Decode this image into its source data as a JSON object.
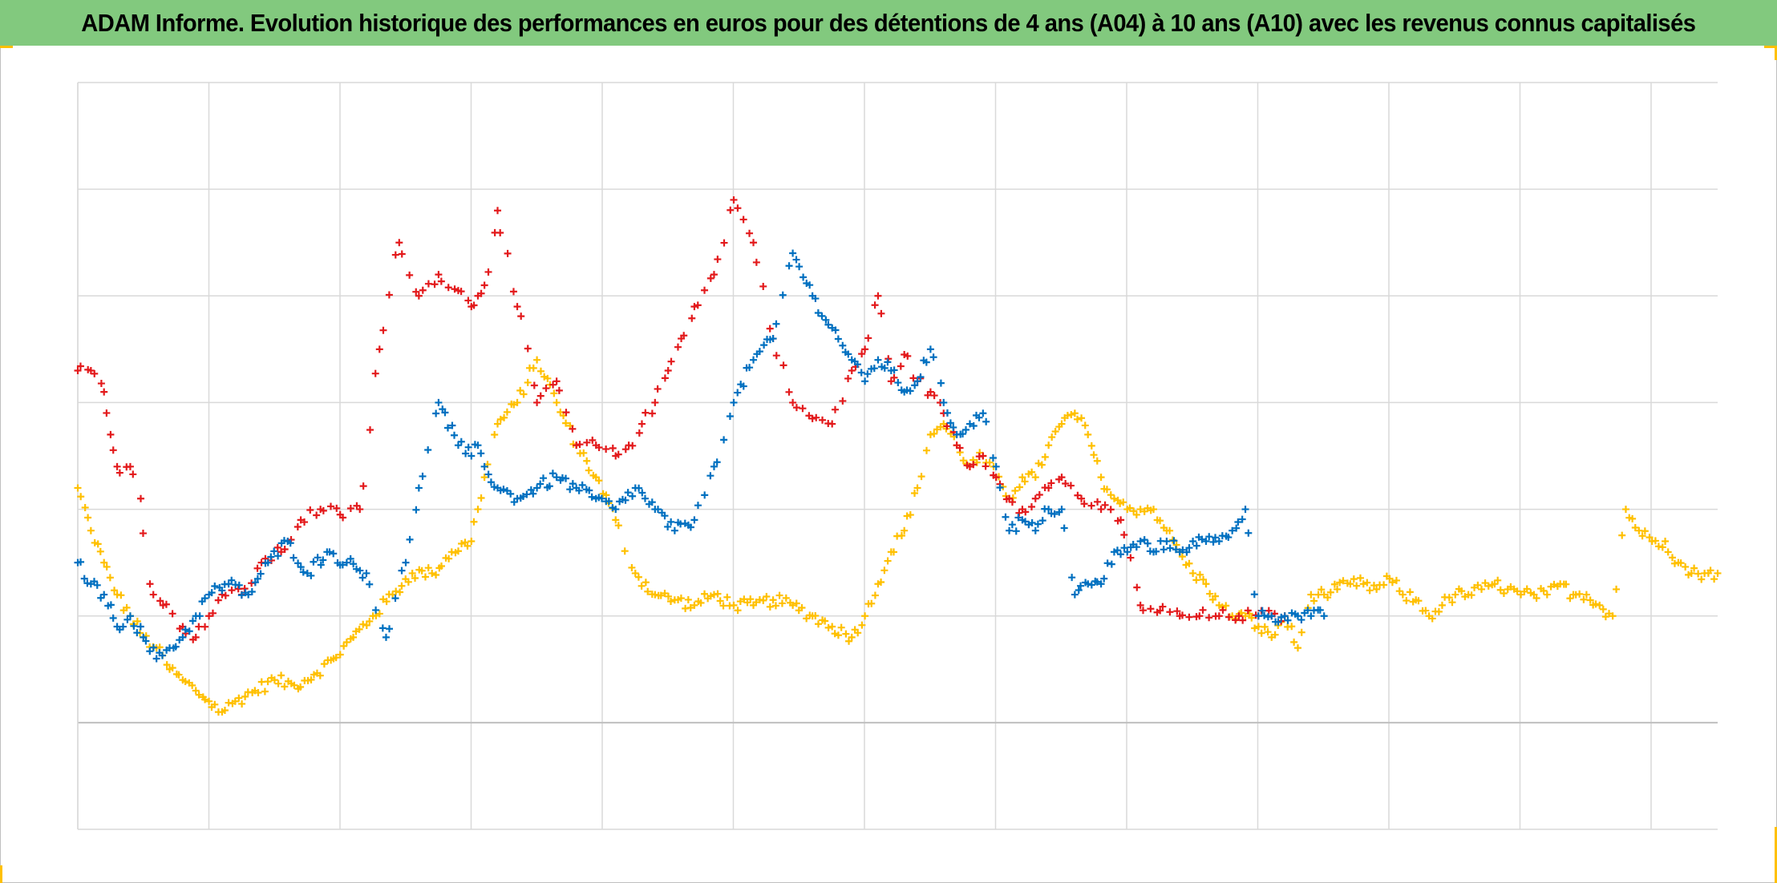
{
  "title": "ADAM Informe. Evolution historique des performances en euros pour des détentions de 4 ans (A04) à 10 ans (A10) avec les revenus connus capitalisés",
  "colors": {
    "title_background": "#82c97e",
    "gridline": "#d9d9d9",
    "zero_line": "#bfbfbf",
    "corner_marks": "#ffc000"
  },
  "chart_data": {
    "type": "scatter",
    "marker": "plus",
    "title": "ADAM Informe. Evolution historique des performances en euros pour des détentions de 4 ans (A04) à 10 ans (A10) avec les revenus connus capitalisés",
    "xlabel": "",
    "ylabel": "",
    "tick_labels_visible": false,
    "legend": "none",
    "grid": true,
    "xlim": [
      0,
      12.5
    ],
    "ylim": [
      -1,
      6
    ],
    "x_gridlines": 12,
    "y_gridlines": [
      -1,
      0,
      1,
      2,
      3,
      4,
      5,
      6
    ],
    "series": [
      {
        "color": "#e31a1c",
        "x": [
          0.0,
          0.1,
          0.2,
          0.25,
          0.3,
          0.4,
          0.48,
          0.55,
          0.65,
          0.8,
          0.9,
          1.0,
          1.1,
          1.25,
          1.4,
          1.55,
          1.7,
          1.85,
          2.0,
          2.15,
          2.3,
          2.45,
          2.6,
          2.75,
          2.9,
          3.0,
          3.05,
          3.1,
          3.2,
          3.35,
          3.5,
          3.65,
          3.8,
          3.95,
          4.1,
          4.2,
          4.3,
          4.4,
          4.5,
          4.6,
          4.7,
          4.85,
          5.0,
          5.15,
          5.3,
          5.45,
          5.6,
          5.75,
          5.9,
          6.0,
          6.1,
          6.2,
          6.3,
          6.4,
          6.5,
          6.6,
          6.7,
          6.8,
          6.9,
          7.0,
          7.1,
          7.2,
          7.3,
          7.4,
          7.5,
          7.65,
          7.8,
          7.95,
          8.1,
          8.25,
          8.4,
          8.55,
          8.7,
          8.85,
          9.0,
          9.1,
          9.2
        ],
        "y": [
          3.3,
          3.3,
          3.1,
          2.7,
          2.4,
          2.4,
          2.1,
          1.3,
          1.1,
          0.9,
          0.8,
          1.0,
          1.2,
          1.2,
          1.5,
          1.6,
          1.9,
          2.0,
          1.95,
          2.0,
          3.5,
          4.5,
          4.0,
          4.2,
          4.05,
          3.9,
          4.0,
          4.1,
          4.8,
          3.9,
          3.0,
          3.2,
          2.6,
          2.6,
          2.5,
          2.6,
          2.8,
          3.0,
          3.3,
          3.6,
          3.9,
          4.2,
          4.9,
          4.5,
          3.6,
          3.0,
          2.85,
          2.8,
          3.3,
          3.5,
          4.0,
          3.2,
          3.45,
          3.2,
          3.1,
          2.9,
          2.6,
          2.4,
          2.5,
          2.3,
          2.1,
          2.0,
          2.1,
          2.2,
          2.3,
          2.1,
          2.0,
          1.9,
          1.1,
          1.05,
          1.0,
          1.0,
          1.0,
          1.0,
          1.0,
          1.0,
          1.0
        ]
      },
      {
        "color": "#0070c0",
        "x": [
          0.0,
          0.1,
          0.2,
          0.3,
          0.4,
          0.5,
          0.6,
          0.7,
          0.8,
          0.9,
          1.0,
          1.15,
          1.3,
          1.45,
          1.6,
          1.75,
          1.9,
          2.05,
          2.2,
          2.35,
          2.5,
          2.6,
          2.75,
          2.9,
          3.0,
          3.05,
          3.1,
          3.2,
          3.35,
          3.5,
          3.65,
          3.8,
          3.95,
          4.1,
          4.25,
          4.4,
          4.55,
          4.7,
          4.85,
          5.0,
          5.15,
          5.3,
          5.45,
          5.6,
          5.75,
          5.9,
          6.0,
          6.1,
          6.2,
          6.3,
          6.4,
          6.5,
          6.6,
          6.7,
          6.8,
          6.9,
          7.0,
          7.1,
          7.2,
          7.3,
          7.4,
          7.5,
          7.6,
          7.7,
          7.8,
          7.9,
          8.0,
          8.1,
          8.2,
          8.3,
          8.4,
          8.5,
          8.6,
          8.7,
          8.8,
          8.9,
          9.0,
          9.1,
          9.2,
          9.3,
          9.4,
          9.5
        ],
        "y": [
          1.5,
          1.3,
          1.2,
          0.9,
          1.0,
          0.8,
          0.6,
          0.7,
          0.8,
          1.0,
          1.2,
          1.3,
          1.2,
          1.5,
          1.7,
          1.4,
          1.6,
          1.5,
          1.4,
          0.8,
          1.5,
          2.2,
          3.0,
          2.6,
          2.5,
          2.6,
          2.4,
          2.2,
          2.1,
          2.2,
          2.3,
          2.2,
          2.1,
          2.0,
          2.2,
          2.0,
          1.8,
          1.9,
          2.4,
          3.0,
          3.4,
          3.6,
          4.4,
          4.0,
          3.7,
          3.4,
          3.2,
          3.4,
          3.3,
          3.1,
          3.2,
          3.5,
          3.0,
          2.7,
          2.8,
          2.9,
          2.4,
          1.8,
          1.9,
          1.8,
          2.0,
          2.0,
          1.2,
          1.3,
          1.3,
          1.6,
          1.6,
          1.7,
          1.6,
          1.7,
          1.6,
          1.7,
          1.7,
          1.7,
          1.8,
          2.0,
          1.0,
          1.0,
          1.0,
          1.0,
          1.0,
          1.0
        ]
      },
      {
        "color": "#ffc000",
        "x": [
          0.0,
          0.1,
          0.2,
          0.3,
          0.4,
          0.5,
          0.6,
          0.7,
          0.8,
          0.9,
          1.0,
          1.1,
          1.2,
          1.35,
          1.5,
          1.65,
          1.8,
          1.95,
          2.1,
          2.25,
          2.4,
          2.55,
          2.7,
          2.85,
          3.0,
          3.05,
          3.1,
          3.2,
          3.35,
          3.5,
          3.65,
          3.8,
          3.95,
          4.1,
          4.25,
          4.4,
          4.55,
          4.7,
          4.85,
          5.0,
          5.15,
          5.3,
          5.45,
          5.6,
          5.75,
          5.9,
          6.0,
          6.1,
          6.2,
          6.3,
          6.4,
          6.5,
          6.6,
          6.7,
          6.8,
          6.9,
          7.0,
          7.1,
          7.2,
          7.3,
          7.4,
          7.5,
          7.6,
          7.7,
          7.8,
          7.9,
          8.0,
          8.1,
          8.2,
          8.3,
          8.4,
          8.5,
          8.6,
          8.7,
          8.8,
          8.9,
          9.0,
          9.1,
          9.2,
          9.3,
          9.4,
          9.5,
          9.6,
          9.7,
          9.8,
          9.9,
          10.0,
          10.1,
          10.2,
          10.3,
          10.4,
          10.5,
          10.6,
          10.7,
          10.8,
          10.9,
          11.0,
          11.1,
          11.2,
          11.3,
          11.4,
          11.5,
          11.6,
          11.7,
          11.8,
          11.9,
          12.0,
          12.1,
          12.2,
          12.3,
          12.4,
          12.5
        ],
        "y": [
          2.2,
          1.8,
          1.5,
          1.2,
          1.0,
          0.8,
          0.7,
          0.5,
          0.4,
          0.3,
          0.2,
          0.1,
          0.2,
          0.3,
          0.4,
          0.35,
          0.45,
          0.6,
          0.8,
          1.0,
          1.2,
          1.4,
          1.4,
          1.6,
          1.7,
          2.0,
          2.3,
          2.8,
          3.0,
          3.4,
          3.0,
          2.6,
          2.3,
          1.9,
          1.4,
          1.2,
          1.15,
          1.1,
          1.2,
          1.1,
          1.1,
          1.15,
          1.1,
          1.0,
          0.9,
          0.8,
          1.0,
          1.3,
          1.6,
          1.8,
          2.2,
          2.7,
          2.8,
          2.6,
          2.4,
          2.5,
          2.3,
          2.1,
          2.3,
          2.3,
          2.6,
          2.8,
          2.9,
          2.7,
          2.3,
          2.1,
          2.0,
          2.0,
          2.0,
          1.8,
          1.6,
          1.4,
          1.3,
          1.1,
          1.0,
          1.0,
          0.9,
          0.8,
          1.0,
          0.7,
          1.2,
          1.2,
          1.25,
          1.3,
          1.3,
          1.25,
          1.35,
          1.2,
          1.15,
          1.0,
          1.1,
          1.2,
          1.2,
          1.25,
          1.3,
          1.25,
          1.2,
          1.2,
          1.2,
          1.3,
          1.2,
          1.2,
          1.1,
          1.0,
          2.0,
          1.8,
          1.7,
          1.7,
          1.5,
          1.4,
          1.4,
          1.4
        ]
      }
    ]
  }
}
